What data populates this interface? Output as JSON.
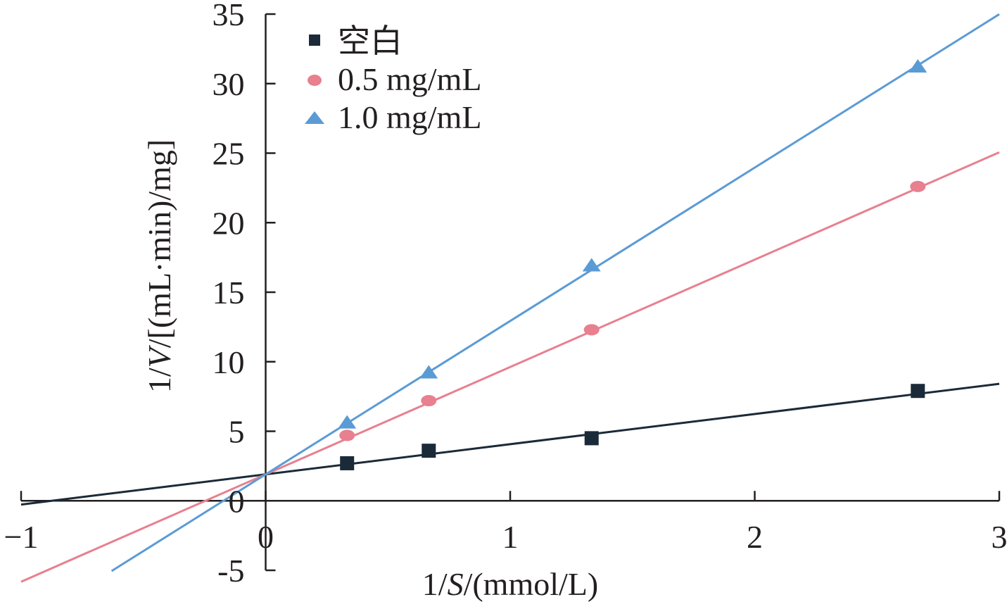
{
  "chart_data": {
    "type": "scatter",
    "xlabel_parts": [
      "1/",
      "S",
      "/(mmol/L)"
    ],
    "ylabel_parts": [
      "1/",
      "V",
      "/[(mL·min)/mg]"
    ],
    "xlim": [
      -1,
      3
    ],
    "ylim": [
      -5,
      35
    ],
    "x_ticks": [
      {
        "value": -1,
        "label": "−1"
      },
      {
        "value": 0,
        "label": "0"
      },
      {
        "value": 1,
        "label": "1"
      },
      {
        "value": 2,
        "label": "2"
      },
      {
        "value": 3,
        "label": "3"
      }
    ],
    "y_ticks": [
      {
        "value": -5,
        "label": "-5"
      },
      {
        "value": 0,
        "label": "0"
      },
      {
        "value": 5,
        "label": "5"
      },
      {
        "value": 10,
        "label": "10"
      },
      {
        "value": 15,
        "label": "15"
      },
      {
        "value": 20,
        "label": "20"
      },
      {
        "value": 25,
        "label": "25"
      },
      {
        "value": 30,
        "label": "30"
      },
      {
        "value": 35,
        "label": "35"
      }
    ],
    "series": [
      {
        "name": "空白",
        "marker": "square",
        "color": "#1b2a38",
        "x": [
          0.333,
          0.667,
          1.333,
          2.667
        ],
        "y": [
          2.7,
          3.6,
          4.5,
          7.9
        ],
        "fit": {
          "slope": 2.17,
          "intercept": 1.9,
          "x_range": [
            -1,
            3
          ]
        }
      },
      {
        "name": "0.5 mg/mL",
        "marker": "circle",
        "color": "#e8808f",
        "x": [
          0.333,
          0.667,
          1.333,
          2.667
        ],
        "y": [
          4.7,
          7.2,
          12.3,
          22.6
        ],
        "fit": {
          "slope": 7.72,
          "intercept": 1.9,
          "x_range": [
            -1,
            3
          ]
        }
      },
      {
        "name": "1.0 mg/mL",
        "marker": "triangle",
        "color": "#5b9bd5",
        "x": [
          0.333,
          0.667,
          1.333,
          2.667
        ],
        "y": [
          5.6,
          9.2,
          16.9,
          31.2
        ],
        "fit": {
          "slope": 11.03,
          "intercept": 1.9,
          "x_range": [
            -0.63,
            3
          ]
        }
      }
    ]
  }
}
